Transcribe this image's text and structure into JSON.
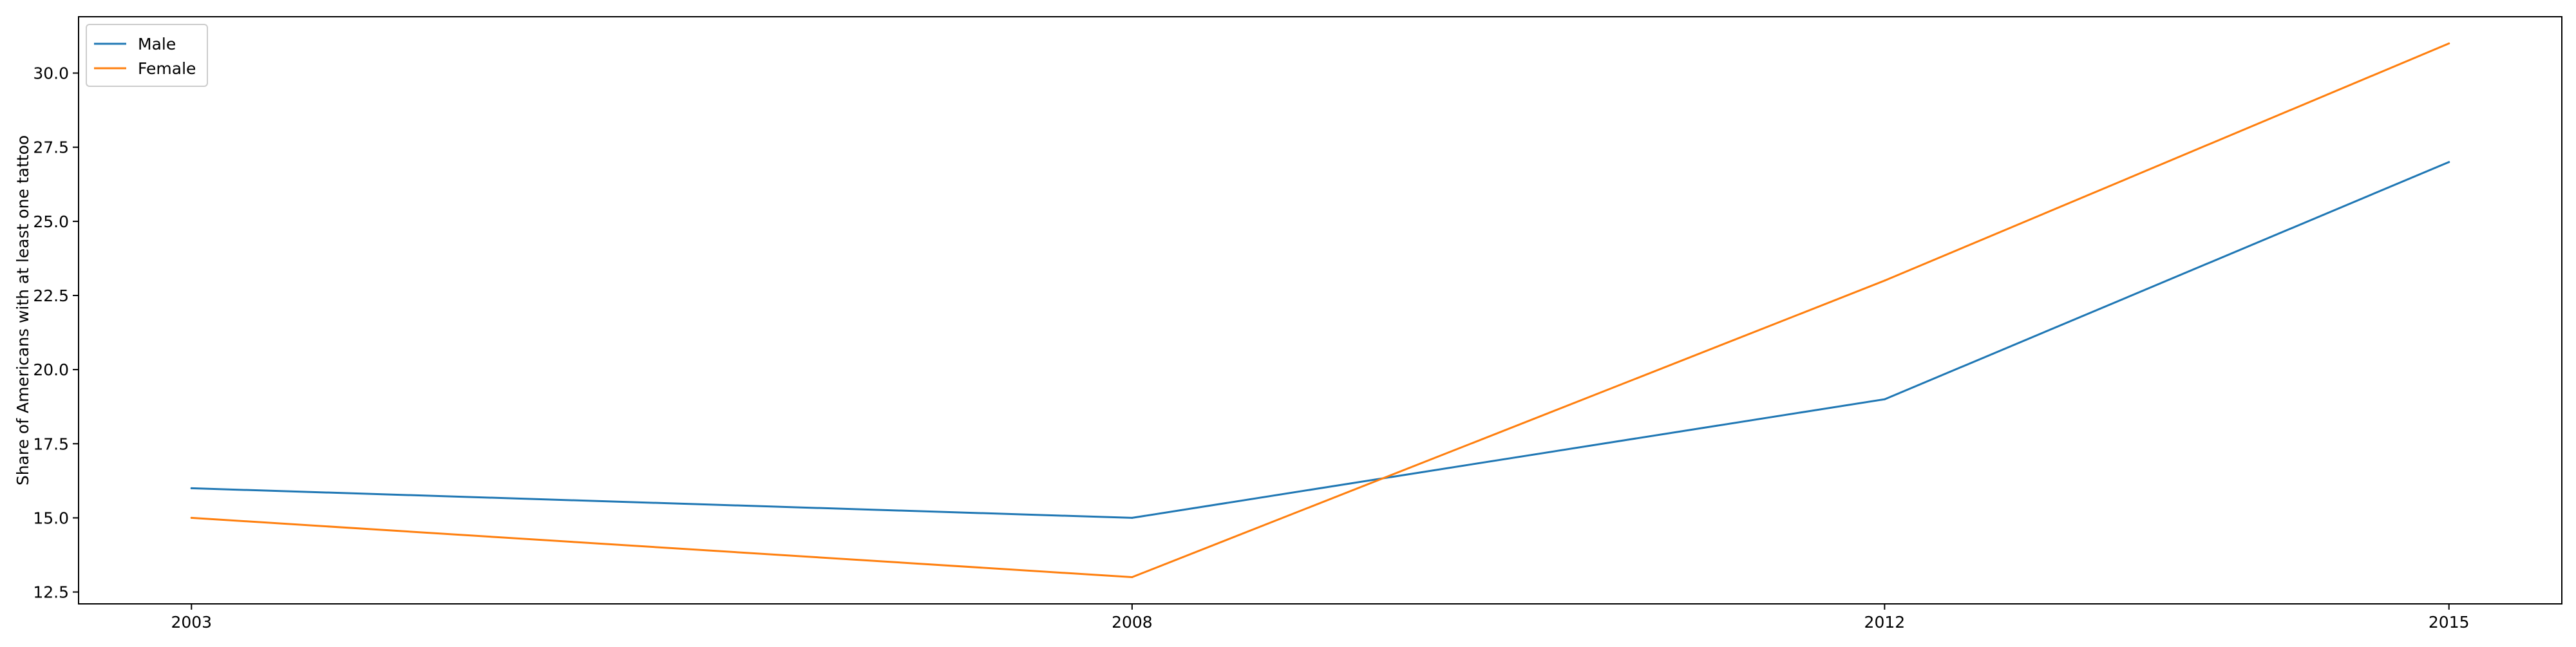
{
  "chart_data": {
    "type": "line",
    "title": "",
    "xlabel": "",
    "ylabel": "Share of Americans with at least one tattoo",
    "x": [
      2003,
      2008,
      2012,
      2015
    ],
    "xticks": [
      "2003",
      "2008",
      "2012",
      "2015"
    ],
    "xlim": [
      2002.4,
      2015.6
    ],
    "ylim": [
      12.1,
      31.9
    ],
    "yticks": [
      "12.5",
      "15.0",
      "17.5",
      "20.0",
      "22.5",
      "25.0",
      "27.5",
      "30.0"
    ],
    "grid": false,
    "legend_position": "top-left",
    "series": [
      {
        "name": "Male",
        "color": "#1f77b4",
        "values": [
          16,
          15,
          19,
          27
        ]
      },
      {
        "name": "Female",
        "color": "#ff7f0e",
        "values": [
          15,
          13,
          23,
          31
        ]
      }
    ]
  }
}
